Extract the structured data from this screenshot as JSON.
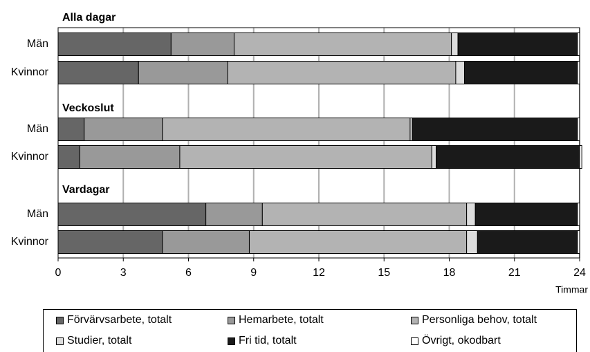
{
  "chart_data": {
    "type": "bar",
    "orientation": "horizontal",
    "stacked": true,
    "xlabel": "Timmar",
    "xlim": [
      0,
      24
    ],
    "xticks": [
      0,
      3,
      6,
      9,
      12,
      15,
      18,
      21,
      24
    ],
    "grid": true,
    "legend_position": "bottom",
    "groups": [
      {
        "title": "Alla dagar",
        "rows": [
          {
            "label": "Män",
            "values": [
              5.2,
              2.9,
              10.0,
              0.3,
              5.5,
              0.1
            ]
          },
          {
            "label": "Kvinnor",
            "values": [
              3.7,
              4.1,
              10.5,
              0.4,
              5.2,
              0.1
            ]
          }
        ]
      },
      {
        "title": "Veckoslut",
        "rows": [
          {
            "label": "Män",
            "values": [
              1.2,
              3.6,
              11.4,
              0.1,
              7.6,
              0.1
            ]
          },
          {
            "label": "Kvinnor",
            "values": [
              1.0,
              4.6,
              11.6,
              0.2,
              6.6,
              0.1
            ]
          }
        ]
      },
      {
        "title": "Vardagar",
        "rows": [
          {
            "label": "Män",
            "values": [
              6.8,
              2.6,
              9.4,
              0.4,
              4.7,
              0.1
            ]
          },
          {
            "label": "Kvinnor",
            "values": [
              4.8,
              4.0,
              10.0,
              0.5,
              4.6,
              0.1
            ]
          }
        ]
      }
    ],
    "series": [
      {
        "name": "Förvärvsarbete, totalt",
        "color": "#666666"
      },
      {
        "name": "Hemarbete, totalt",
        "color": "#999999"
      },
      {
        "name": "Personliga behov, totalt",
        "color": "#b3b3b3"
      },
      {
        "name": "Studier, totalt",
        "color": "#dddddd"
      },
      {
        "name": "Fri tid, totalt",
        "color": "#1a1a1a"
      },
      {
        "name": "Övrigt, okodbart",
        "color": "#ffffff"
      }
    ]
  }
}
